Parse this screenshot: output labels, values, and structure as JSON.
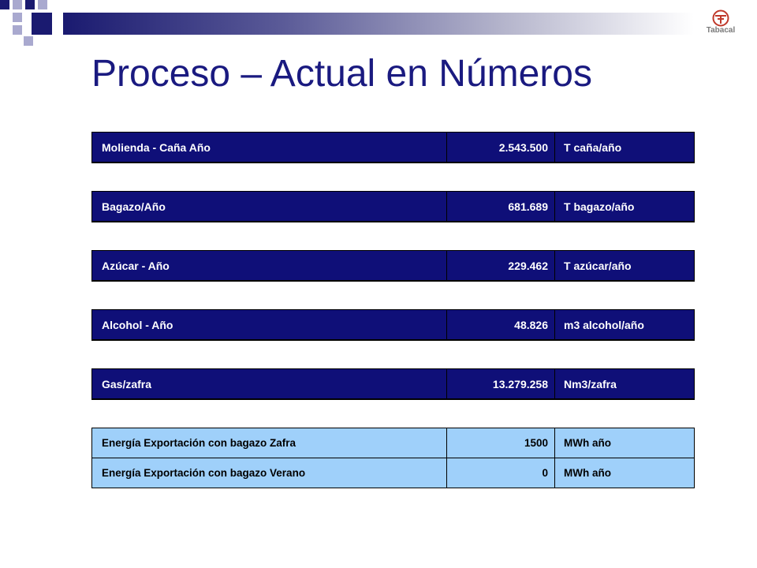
{
  "slide": {
    "title": "Proceso – Actual en Números",
    "logo_text": "Tabacal"
  },
  "colors": {
    "title": "#1a1a80",
    "dark_row_bg": "#0f0f78",
    "light_row_bg": "#9fd0fa",
    "decor_navy": "#1a1a70"
  },
  "tables": {
    "molienda": [
      {
        "label": "Molienda - Caña Año",
        "value": "2.543.500",
        "unit": "T caña/año"
      }
    ],
    "bagazo": [
      {
        "label": "Bagazo/Año",
        "value": "681.689",
        "unit": "T bagazo/año"
      }
    ],
    "azucar": [
      {
        "label": "Azúcar - Año",
        "value": "229.462",
        "unit": "T azúcar/año"
      }
    ],
    "alcohol": [
      {
        "label": "Alcohol - Año",
        "value": "48.826",
        "unit": "m3 alcohol/año"
      }
    ],
    "gas": [
      {
        "label": "Gas/zafra",
        "value": "13.279.258",
        "unit": "Nm3/zafra"
      }
    ],
    "energia": [
      {
        "label": "Energía Exportación con bagazo Zafra",
        "value": "1500",
        "unit": "MWh  año"
      },
      {
        "label": "Energía Exportación con bagazo Verano",
        "value": "0",
        "unit": "MWh  año"
      }
    ]
  }
}
